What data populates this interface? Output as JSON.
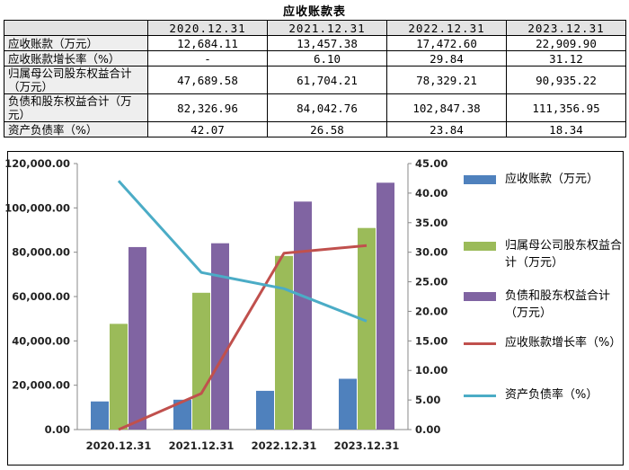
{
  "table": {
    "title": "应收账款表",
    "columns": [
      "2020.12.31",
      "2021.12.31",
      "2022.12.31",
      "2023.12.31"
    ],
    "rows": [
      {
        "label": "应收账款（万元）",
        "values": [
          "12,684.11",
          "13,457.38",
          "17,472.60",
          "22,909.90"
        ]
      },
      {
        "label": "应收账款增长率（%）",
        "values": [
          "-",
          "6.10",
          "29.84",
          "31.12"
        ]
      },
      {
        "label": "归属母公司股东权益合计（万元）",
        "values": [
          "47,689.58",
          "61,704.21",
          "78,329.21",
          "90,935.22"
        ]
      },
      {
        "label": "负债和股东权益合计（万元）",
        "values": [
          "82,326.96",
          "84,042.76",
          "102,847.38",
          "111,356.95"
        ]
      },
      {
        "label": "资产负债率（%）",
        "values": [
          "42.07",
          "26.58",
          "23.84",
          "18.34"
        ]
      }
    ]
  },
  "chart_data": {
    "type": "bar",
    "categories": [
      "2020.12.31",
      "2021.12.31",
      "2022.12.31",
      "2023.12.31"
    ],
    "series": [
      {
        "name": "应收账款（万元）",
        "kind": "bar",
        "axis": "left",
        "color": "#4f81bd",
        "values": [
          12684.11,
          13457.38,
          17472.6,
          22909.9
        ]
      },
      {
        "name": "归属母公司股东权益合计（万元）",
        "kind": "bar",
        "axis": "left",
        "color": "#9bbb59",
        "values": [
          47689.58,
          61704.21,
          78329.21,
          90935.22
        ]
      },
      {
        "name": "负债和股东权益合计（万元）",
        "kind": "bar",
        "axis": "left",
        "color": "#8064a2",
        "values": [
          82326.96,
          84042.76,
          102847.38,
          111356.95
        ]
      },
      {
        "name": "应收账款增长率（%）",
        "kind": "line",
        "axis": "right",
        "color": "#c0504d",
        "values": [
          0,
          6.1,
          29.84,
          31.12
        ]
      },
      {
        "name": "资产负债率（%）",
        "kind": "line",
        "axis": "right",
        "color": "#4bacc6",
        "values": [
          42.07,
          26.58,
          23.84,
          18.34
        ]
      }
    ],
    "left_axis": {
      "min": 0,
      "max": 120000,
      "step": 20000,
      "tick_labels": [
        "0.00",
        "20,000.00",
        "40,000.00",
        "60,000.00",
        "80,000.00",
        "100,000.00",
        "120,000.00"
      ]
    },
    "right_axis": {
      "min": 0,
      "max": 45,
      "step": 5,
      "tick_labels": [
        "0.00",
        "5.00",
        "10.00",
        "15.00",
        "20.00",
        "25.00",
        "30.00",
        "35.00",
        "40.00",
        "45.00"
      ]
    },
    "legend": [
      {
        "text": "应收账款（万元）",
        "color": "#4f81bd",
        "shape": "box"
      },
      {
        "text": "归属母公司股东权益合计（万元）",
        "color": "#9bbb59",
        "shape": "box"
      },
      {
        "text": "负债和股东权益合计（万元）",
        "color": "#8064a2",
        "shape": "box"
      },
      {
        "text": "应收账款增长率（%）",
        "color": "#c0504d",
        "shape": "line"
      },
      {
        "text": "资产负债率（%）",
        "color": "#4bacc6",
        "shape": "line"
      }
    ],
    "legend_position": "right"
  }
}
